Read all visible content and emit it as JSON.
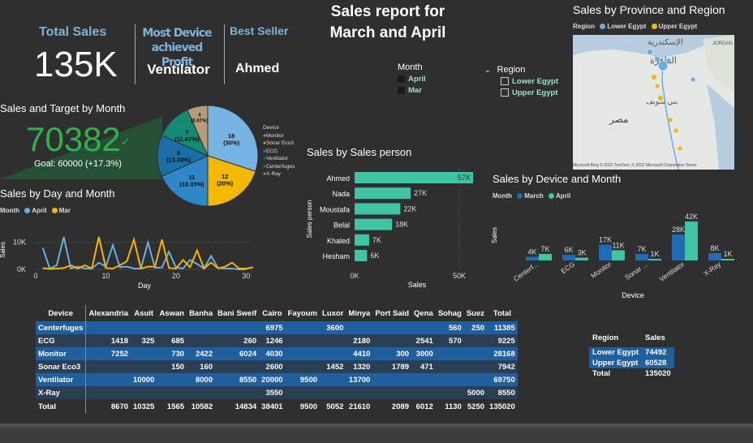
{
  "title_line1": "Sales report for",
  "title_line2": "March and April",
  "kpis": {
    "total_sales_label": "Total Sales",
    "total_sales_value": "135K",
    "most_device_label_1": "Most Device achieved",
    "most_device_label_2": "Profit",
    "most_device_value": "Ventilator",
    "best_seller_label": "Best Seller",
    "best_seller_value": "Ahmed"
  },
  "month_slicer": {
    "title": "Month",
    "items": [
      "April",
      "Mar"
    ]
  },
  "region_slicer": {
    "title": "Region",
    "items": [
      "Lower Egypt",
      "Upper Egypt"
    ]
  },
  "map": {
    "title": "Sales by Province and Region",
    "legend_title": "Region",
    "legend": [
      "Lower Egypt",
      "Upper Egypt"
    ],
    "labels": [
      "الإسكندرية",
      "القاهرة",
      "بني سويف",
      "مصر"
    ],
    "corner_label": "JORDAN",
    "attribution": "© 2022 TomTom, © 2022 Microsoft Corporation Terms",
    "logo": "Microsoft Bing"
  },
  "gauge": {
    "title": "Sales and Target by Month",
    "value": "70382",
    "check": "✓",
    "goal_text": "Goal: 60000 (+17.3%)"
  },
  "colors": {
    "april": "#6aaee0",
    "march": "#f5b400",
    "kpi_green": "#2db34a",
    "bar_teal": "#3fc4a4",
    "bar_blue": "#1f6bb8",
    "table_blue": "#1f5f9e",
    "table_dark": "#2a3e55"
  },
  "pie": {
    "legend_title": "Device",
    "labels": [
      "Monitor",
      "Sonar Eco3",
      "ECG",
      "Ventilator",
      "Centerfuges",
      "X-Ray"
    ],
    "colors": [
      "#76b4e3",
      "#f5b800",
      "#2d87c9",
      "#1a6fa6",
      "#138a73",
      "#b89c7a"
    ],
    "slices": [
      {
        "label": "18",
        "pct": "(30%)"
      },
      {
        "label": "12",
        "pct": "(20%)"
      },
      {
        "label": "11",
        "pct": "(18.33%)"
      },
      {
        "label": "8",
        "pct": "(13.33%)"
      },
      {
        "label": "7",
        "pct": "(11.67%)"
      },
      {
        "label": "4",
        "pct": "(6.67%)"
      }
    ]
  },
  "line_chart": {
    "title": "Sales by Day and Month",
    "legend_title": "Month",
    "legend": [
      "April",
      "Mar"
    ],
    "xlabel": "Day",
    "ylabel": "Sales",
    "xticks": [
      "0",
      "10",
      "20",
      "30"
    ],
    "yticks": [
      "10K",
      "0K"
    ]
  },
  "salesperson_chart": {
    "title": "Sales by Sales person",
    "xlabel": "Sales",
    "ylabel": "Sales person",
    "xticks": [
      "0K",
      "50K"
    ]
  },
  "device_chart": {
    "title": "Sales by Device and Month",
    "legend_title": "Month",
    "legend": [
      "March",
      "April"
    ],
    "xlabel": "Device",
    "ylabel": "Sales"
  },
  "chart_data": [
    {
      "type": "pie",
      "title": "",
      "categories": [
        "Monitor",
        "Sonar Eco3",
        "ECG",
        "Ventilator",
        "Centerfuges",
        "X-Ray"
      ],
      "values": [
        18,
        12,
        11,
        8,
        7,
        4
      ],
      "percent": [
        30,
        20,
        18.33,
        13.33,
        11.67,
        6.67
      ]
    },
    {
      "type": "line",
      "title": "Sales by Day and Month",
      "xlabel": "Day",
      "ylabel": "Sales",
      "xlim": [
        0,
        31
      ],
      "ylim": [
        0,
        15000
      ],
      "series": [
        {
          "name": "April",
          "x": [
            1,
            2,
            3,
            4,
            5,
            6,
            7,
            8,
            9,
            10,
            11,
            12,
            13,
            14,
            15,
            16,
            17,
            18,
            19,
            20,
            21,
            22,
            23,
            24,
            25,
            26,
            27,
            28,
            29,
            30
          ],
          "values": [
            8000,
            300,
            1500,
            12000,
            300,
            1000,
            300,
            300,
            2500,
            1000,
            9000,
            800,
            1000,
            300,
            300,
            10000,
            600,
            700,
            6500,
            700,
            300,
            3500,
            2000,
            300,
            5000,
            500,
            300,
            300,
            0,
            0
          ]
        },
        {
          "name": "Mar",
          "x": [
            1,
            2,
            3,
            4,
            5,
            6,
            7,
            8,
            9,
            10,
            11,
            12,
            13,
            14,
            15,
            16,
            17,
            18,
            19,
            20,
            21,
            22,
            23,
            24,
            25,
            26,
            27,
            28,
            29,
            30,
            31
          ],
          "values": [
            500,
            200,
            300,
            500,
            1500,
            300,
            1500,
            300,
            12000,
            500,
            300,
            1500,
            3000,
            11000,
            300,
            1000,
            1000,
            11000,
            500,
            300,
            3500,
            800,
            7000,
            300,
            2500,
            400,
            1000,
            2500,
            300,
            300,
            800
          ]
        }
      ]
    },
    {
      "type": "bar",
      "title": "Sales by Sales person",
      "orientation": "horizontal",
      "categories": [
        "Ahmed",
        "Nada",
        "Moustafa",
        "Belal",
        "Khaled",
        "Hesham"
      ],
      "values": [
        57000,
        27000,
        22000,
        18000,
        7000,
        6000
      ],
      "labels": [
        "57K",
        "27K",
        "22K",
        "18K",
        "7K",
        "6K"
      ],
      "xlim": [
        0,
        57000
      ]
    },
    {
      "type": "bar",
      "title": "Sales by Device and Month",
      "categories": [
        "Centerf...",
        "ECG",
        "Monitor",
        "Sonar ...",
        "Ventilator",
        "X-Ray"
      ],
      "series": [
        {
          "name": "March",
          "values": [
            4000,
            6000,
            17000,
            7000,
            28000,
            8000
          ],
          "labels": [
            "4K",
            "6K",
            "17K",
            "7K",
            "28K",
            "8K"
          ]
        },
        {
          "name": "April",
          "values": [
            7000,
            3000,
            11000,
            1000,
            42000,
            1000
          ],
          "labels": [
            "7K",
            "3K",
            "11K",
            "1K",
            "42K",
            "1K"
          ]
        }
      ],
      "ylim": [
        0,
        42000
      ]
    }
  ],
  "matrix": {
    "headers": [
      "Device",
      "Alexandria",
      "Asuit",
      "Aswan",
      "Banha",
      "Bani Sweif",
      "Cairo",
      "Fayoum",
      "Luxor",
      "Minya",
      "Port Said",
      "Qena",
      "Sohag",
      "Suez",
      "Total"
    ],
    "rows": [
      [
        "Centerfuges",
        "",
        "",
        "",
        "",
        "",
        "6975",
        "",
        "3600",
        "",
        "",
        "",
        "560",
        "250",
        "11385"
      ],
      [
        "ECG",
        "1418",
        "325",
        "685",
        "",
        "260",
        "1246",
        "",
        "",
        "2180",
        "",
        "2541",
        "570",
        "",
        "9225"
      ],
      [
        "Monitor",
        "7252",
        "",
        "730",
        "2422",
        "6024",
        "4030",
        "",
        "",
        "4410",
        "300",
        "3000",
        "",
        "",
        "28168"
      ],
      [
        "Sonar Eco3",
        "",
        "",
        "150",
        "160",
        "",
        "2600",
        "",
        "1452",
        "1320",
        "1789",
        "471",
        "",
        "",
        "7942"
      ],
      [
        "Ventilator",
        "",
        "10000",
        "",
        "8000",
        "8550",
        "20000",
        "9500",
        "",
        "13700",
        "",
        "",
        "",
        "",
        "69750"
      ],
      [
        "X-Ray",
        "",
        "",
        "",
        "",
        "",
        "3550",
        "",
        "",
        "",
        "",
        "",
        "",
        "5000",
        "8550"
      ]
    ],
    "total": [
      "Total",
      "8670",
      "10325",
      "1565",
      "10582",
      "14834",
      "38401",
      "9500",
      "5052",
      "21610",
      "2089",
      "6012",
      "1130",
      "5250",
      "135020"
    ]
  },
  "region_table": {
    "headers": [
      "Region",
      "Sales"
    ],
    "rows": [
      [
        "Lower Egypt",
        "74492"
      ],
      [
        "Upper Egypt",
        "60528"
      ]
    ],
    "total": [
      "Total",
      "135020"
    ]
  }
}
